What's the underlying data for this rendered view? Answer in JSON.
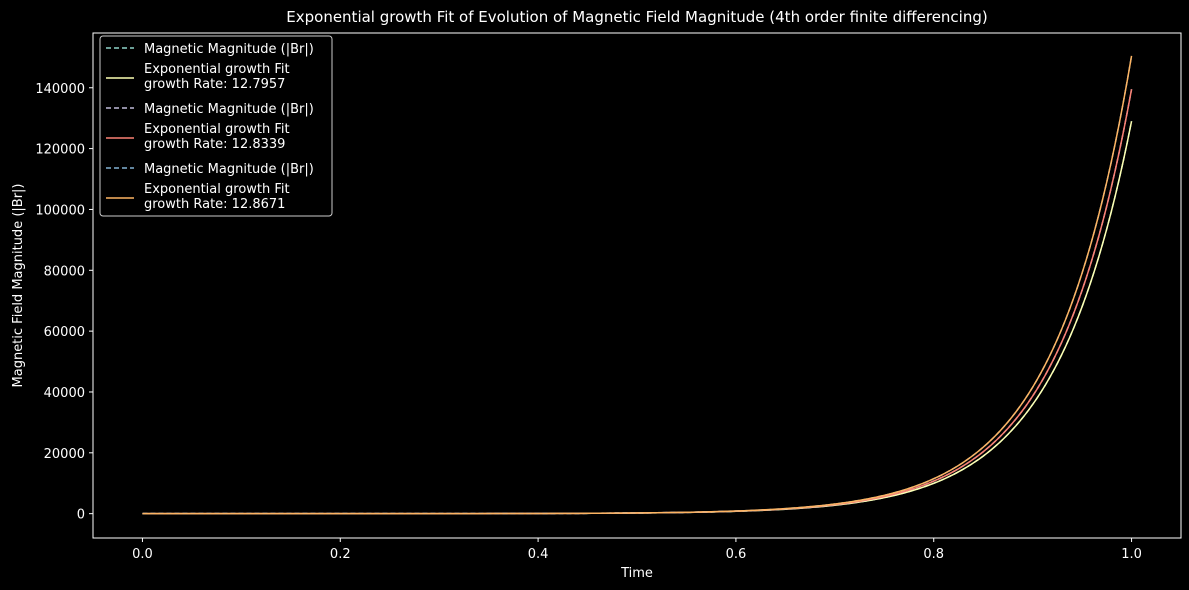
{
  "chart_data": {
    "type": "line",
    "title": "Exponential growth Fit of Evolution of Magnetic Field Magnitude (4th order finite differencing)",
    "xlabel": "Time",
    "ylabel": "Magnetic Field Magnitude (|Br|)",
    "xlim": [
      -0.05,
      1.05
    ],
    "ylim": [
      -8000,
      158000
    ],
    "xticks": [
      0.0,
      0.2,
      0.4,
      0.6,
      0.8,
      1.0
    ],
    "xtick_labels": [
      "0.0",
      "0.2",
      "0.4",
      "0.6",
      "0.8",
      "1.0"
    ],
    "yticks": [
      0,
      20000,
      40000,
      60000,
      80000,
      100000,
      120000,
      140000
    ],
    "ytick_labels": [
      "0",
      "20000",
      "40000",
      "60000",
      "80000",
      "100000",
      "120000",
      "140000"
    ],
    "grid": false,
    "legend_position": "top-left",
    "background": "#000000",
    "series": [
      {
        "name": "Magnetic Magnitude (|Br|)",
        "style": "dashed",
        "color": "#8dd3c7",
        "growth_rate": 12.7957,
        "end_value": 129000
      },
      {
        "name": "Exponential growth Fit",
        "name_line2": "growth Rate: 12.7957",
        "style": "solid",
        "color": "#feffb3",
        "growth_rate": 12.7957,
        "end_value": 129000
      },
      {
        "name": "Magnetic Magnitude (|Br|)",
        "style": "dashed",
        "color": "#bfbbd9",
        "growth_rate": 12.8339,
        "end_value": 139500
      },
      {
        "name": "Exponential growth Fit",
        "name_line2": "growth Rate: 12.8339",
        "style": "solid",
        "color": "#fa8174",
        "growth_rate": 12.8339,
        "end_value": 139500
      },
      {
        "name": "Magnetic Magnitude (|Br|)",
        "style": "dashed",
        "color": "#81b1d2",
        "growth_rate": 12.8671,
        "end_value": 150500
      },
      {
        "name": "Exponential growth Fit",
        "name_line2": "growth Rate: 12.8671",
        "style": "solid",
        "color": "#fdb462",
        "growth_rate": 12.8671,
        "end_value": 150500
      }
    ]
  }
}
